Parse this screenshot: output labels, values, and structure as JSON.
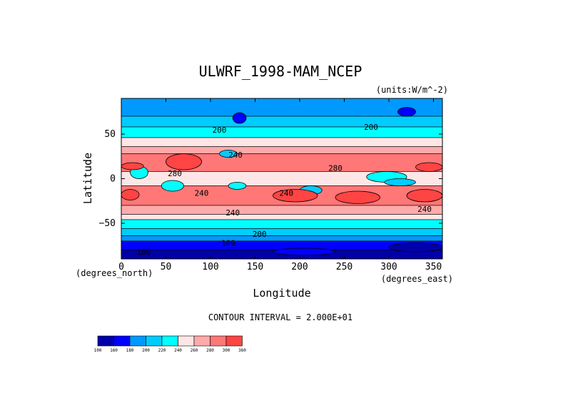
{
  "chart_data": {
    "type": "heatmap",
    "title": "ULWRF_1998-MAM_NCEP",
    "units_label": "(units:W/m^-2)",
    "xlabel": "Longitude",
    "ylabel": "Latitude",
    "x_units_label": "(degrees_east)",
    "y_units_label": "(degrees_north)",
    "xlim": [
      0,
      360
    ],
    "ylim": [
      -90,
      90
    ],
    "x_ticks": [
      0,
      50,
      100,
      150,
      200,
      250,
      300,
      350
    ],
    "y_ticks": [
      -50,
      0,
      50
    ],
    "contour_interval_text": "CONTOUR INTERVAL = 2.000E+01",
    "contour_labels": [
      {
        "text": "200",
        "lon": 110,
        "lat": 55
      },
      {
        "text": "200",
        "lon": 280,
        "lat": 58
      },
      {
        "text": "240",
        "lon": 128,
        "lat": 27
      },
      {
        "text": "280",
        "lon": 60,
        "lat": 6
      },
      {
        "text": "280",
        "lon": 240,
        "lat": 12
      },
      {
        "text": "240",
        "lon": 90,
        "lat": -16
      },
      {
        "text": "240",
        "lon": 185,
        "lat": -16
      },
      {
        "text": "240",
        "lon": 340,
        "lat": -34
      },
      {
        "text": "240",
        "lon": 125,
        "lat": -38
      },
      {
        "text": "200",
        "lon": 155,
        "lat": -62
      },
      {
        "text": "160",
        "lon": 120,
        "lat": -72
      },
      {
        "text": "160",
        "lon": 25,
        "lat": -82
      }
    ],
    "legend_levels": [
      "100",
      "160",
      "180",
      "200",
      "220",
      "240",
      "260",
      "280",
      "300",
      "360"
    ],
    "legend_colors": [
      "#0000aa",
      "#0000ff",
      "#0099ff",
      "#00ccff",
      "#00ffff",
      "#ffe6e6",
      "#ffaaaa",
      "#ff7777",
      "#ff4444",
      "#ff0000"
    ],
    "background_bands": [
      {
        "lat": [
          70,
          90
        ],
        "level": "180"
      },
      {
        "lat": [
          58,
          70
        ],
        "level": "200"
      },
      {
        "lat": [
          46,
          58
        ],
        "level": "220"
      },
      {
        "lat": [
          36,
          46
        ],
        "level": "240"
      },
      {
        "lat": [
          28,
          36
        ],
        "level": "260"
      },
      {
        "lat": [
          8,
          28
        ],
        "level": "280"
      },
      {
        "lat": [
          -8,
          8
        ],
        "level": "240"
      },
      {
        "lat": [
          -30,
          -8
        ],
        "level": "280"
      },
      {
        "lat": [
          -40,
          -30
        ],
        "level": "260"
      },
      {
        "lat": [
          -46,
          -40
        ],
        "level": "240"
      },
      {
        "lat": [
          -56,
          -46
        ],
        "level": "220"
      },
      {
        "lat": [
          -64,
          -56
        ],
        "level": "200"
      },
      {
        "lat": [
          -70,
          -64
        ],
        "level": "180"
      },
      {
        "lat": [
          -80,
          -70
        ],
        "level": "160"
      },
      {
        "lat": [
          -90,
          -80
        ],
        "level": "100"
      }
    ],
    "patches": [
      {
        "lon": [
          10,
          30
        ],
        "lat": [
          0,
          14
        ],
        "level": "220"
      },
      {
        "lon": [
          50,
          90
        ],
        "lat": [
          10,
          28
        ],
        "level": "300"
      },
      {
        "lon": [
          0,
          25
        ],
        "lat": [
          10,
          18
        ],
        "level": "300"
      },
      {
        "lon": [
          330,
          360
        ],
        "lat": [
          8,
          18
        ],
        "level": "300"
      },
      {
        "lon": [
          45,
          70
        ],
        "lat": [
          -14,
          -2
        ],
        "level": "220"
      },
      {
        "lon": [
          120,
          140
        ],
        "lat": [
          -12,
          -4
        ],
        "level": "220"
      },
      {
        "lon": [
          200,
          225
        ],
        "lat": [
          -18,
          -8
        ],
        "level": "200"
      },
      {
        "lon": [
          275,
          320
        ],
        "lat": [
          -4,
          8
        ],
        "level": "220"
      },
      {
        "lon": [
          295,
          330
        ],
        "lat": [
          -8,
          0
        ],
        "level": "200"
      },
      {
        "lon": [
          110,
          130
        ],
        "lat": [
          24,
          32
        ],
        "level": "200"
      },
      {
        "lon": [
          125,
          140
        ],
        "lat": [
          62,
          74
        ],
        "level": "160"
      },
      {
        "lon": [
          310,
          330
        ],
        "lat": [
          70,
          80
        ],
        "level": "160"
      },
      {
        "lon": [
          170,
          220
        ],
        "lat": [
          -26,
          -12
        ],
        "level": "300"
      },
      {
        "lon": [
          240,
          290
        ],
        "lat": [
          -28,
          -14
        ],
        "level": "300"
      },
      {
        "lon": [
          320,
          360
        ],
        "lat": [
          -26,
          -12
        ],
        "level": "300"
      },
      {
        "lon": [
          0,
          20
        ],
        "lat": [
          -24,
          -12
        ],
        "level": "300"
      },
      {
        "lon": [
          170,
          240
        ],
        "lat": [
          -86,
          -78
        ],
        "level": "160"
      },
      {
        "lon": [
          300,
          360
        ],
        "lat": [
          -82,
          -72
        ],
        "level": "100"
      }
    ]
  }
}
